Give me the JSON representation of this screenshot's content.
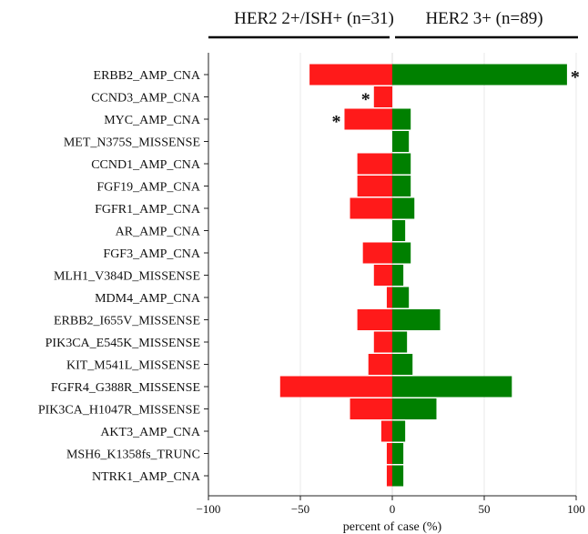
{
  "chart_data": {
    "type": "bar",
    "orientation": "horizontal-diverging",
    "title": "",
    "xlabel": "percent of case (%)",
    "ylabel": "",
    "xlim": [
      -100,
      100
    ],
    "xticks": [
      -100,
      -50,
      0,
      50,
      100
    ],
    "grid": true,
    "groups": [
      {
        "label": "HER2 2+/ISH+ (n=31)",
        "side": "left",
        "color": "#ff1a1a"
      },
      {
        "label": "HER2 3+ (n=89)",
        "side": "right",
        "color": "#008000"
      }
    ],
    "categories": [
      "ERBB2_AMP_CNA",
      "CCND3_AMP_CNA",
      "MYC_AMP_CNA",
      "MET_N375S_MISSENSE",
      "CCND1_AMP_CNA",
      "FGF19_AMP_CNA",
      "FGFR1_AMP_CNA",
      "AR_AMP_CNA",
      "FGF3_AMP_CNA",
      "MLH1_V384D_MISSENSE",
      "MDM4_AMP_CNA",
      "ERBB2_I655V_MISSENSE",
      "PIK3CA_E545K_MISSENSE",
      "KIT_M541L_MISSENSE",
      "FGFR4_G388R_MISSENSE",
      "PIK3CA_H1047R_MISSENSE",
      "AKT3_AMP_CNA",
      "MSH6_K1358fs_TRUNC",
      "NTRK1_AMP_CNA"
    ],
    "series": [
      {
        "name": "HER2 2+/ISH+ (n=31)",
        "values": [
          -45,
          -10,
          -26,
          0,
          -19,
          -19,
          -23,
          0,
          -16,
          -10,
          -3,
          -19,
          -10,
          -13,
          -61,
          -23,
          -6,
          -3,
          -3
        ]
      },
      {
        "name": "HER2 3+ (n=89)",
        "values": [
          95,
          0,
          10,
          9,
          10,
          10,
          12,
          7,
          10,
          6,
          9,
          26,
          8,
          11,
          65,
          24,
          7,
          6,
          6
        ]
      }
    ],
    "annotations": [
      {
        "category": "ERBB2_AMP_CNA",
        "side": "right",
        "text": "*"
      },
      {
        "category": "CCND3_AMP_CNA",
        "side": "left",
        "text": "*"
      },
      {
        "category": "MYC_AMP_CNA",
        "side": "left",
        "text": "*"
      }
    ]
  }
}
